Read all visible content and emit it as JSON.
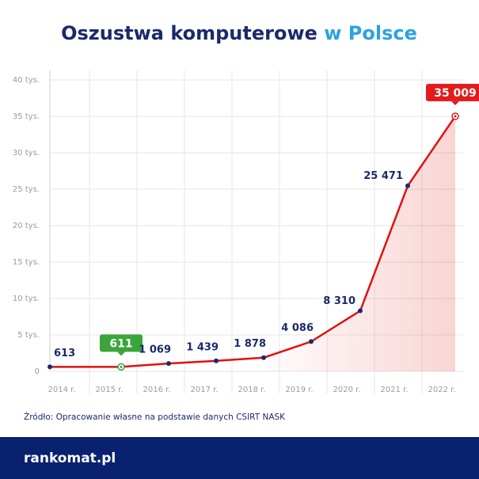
{
  "chart_data": {
    "type": "line",
    "title": "Oszustwa komputerowe",
    "title_highlight": "w Polsce",
    "categories": [
      "2014 r.",
      "2015 r.",
      "2016 r.",
      "2017 r.",
      "2018 r.",
      "2019 r.",
      "2020 r.",
      "2021 r.",
      "2022 r."
    ],
    "values": [
      613,
      611,
      1069,
      1439,
      1878,
      4086,
      8310,
      25471,
      35009
    ],
    "value_labels": [
      "613",
      "611",
      "1 069",
      "1 439",
      "1 878",
      "4 086",
      "8 310",
      "25 471",
      "35 009"
    ],
    "color": "#e0110f",
    "marker_color": "#1b2a6b",
    "min_color": "#3aa53a",
    "max_color": "#e31b1b",
    "ylim": [
      0,
      40000
    ],
    "yticks": [
      0,
      {
        "value": 5000,
        "label": "5 tys."
      },
      {
        "value": 10000,
        "label": "10 tys."
      },
      {
        "value": 15000,
        "label": "15 tys."
      },
      {
        "value": 20000,
        "label": "20 tys."
      },
      {
        "value": 25000,
        "label": "25 tys."
      },
      {
        "value": 30000,
        "label": "30 tys."
      },
      {
        "value": 35000,
        "label": "35 tys."
      },
      {
        "value": 40000,
        "label": "40 tys."
      }
    ],
    "grid": true,
    "source": "Źródło: Opracowanie własne na podstawie danych CSIRT NASK",
    "brand": "rankomat.pl"
  }
}
